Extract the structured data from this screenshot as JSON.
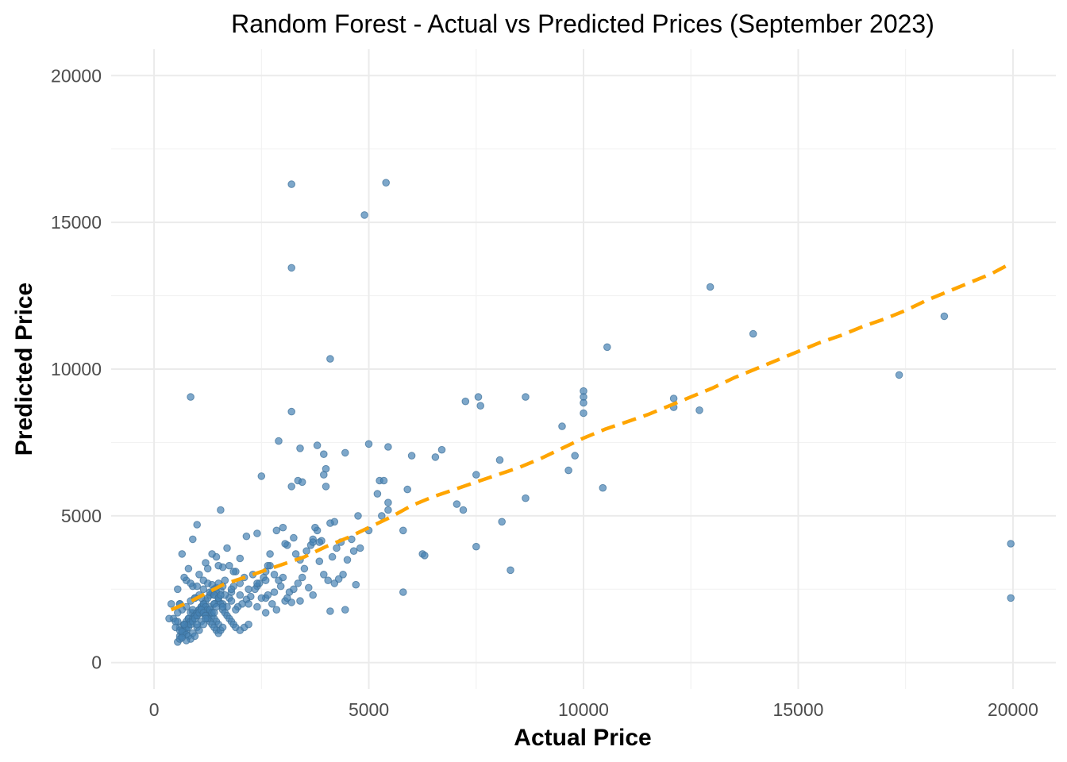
{
  "chart_data": {
    "type": "scatter",
    "title": "Random Forest - Actual vs Predicted Prices (September 2023)",
    "xlabel": "Actual Price",
    "ylabel": "Predicted Price",
    "xlim": [
      -1000,
      21000
    ],
    "ylim": [
      -900,
      20900
    ],
    "x_ticks": [
      0,
      5000,
      10000,
      15000,
      20000
    ],
    "y_ticks": [
      0,
      5000,
      10000,
      15000,
      20000
    ],
    "x_tick_labels": [
      "0",
      "5000",
      "10000",
      "15000",
      "20000"
    ],
    "y_tick_labels": [
      "0",
      "5000",
      "10000",
      "15000",
      "20000"
    ],
    "grid": true,
    "legend": "none",
    "colors": {
      "points": "#4682b4",
      "trend": "#ffa500"
    },
    "series": [
      {
        "kind": "points",
        "x": [
          3200,
          5400,
          4900,
          3200,
          12950,
          13950,
          18400,
          4100,
          10550,
          17350,
          10000,
          10000,
          10000,
          10000,
          12100,
          12100,
          12700,
          9500,
          8650,
          7250,
          7550,
          7600,
          850,
          3200,
          5000,
          5450,
          2900,
          3800,
          3400,
          4450,
          6000,
          6550,
          6700,
          3950,
          4000,
          3200,
          3350,
          3450,
          2500,
          3950,
          4000,
          5250,
          5350,
          5900,
          5450,
          5450,
          5200,
          4750,
          5300,
          5800,
          6250,
          6300,
          7050,
          7200,
          7500,
          7500,
          8050,
          8100,
          8300,
          8650,
          9650,
          9800,
          10450,
          4700,
          5000,
          5800,
          19950,
          19950,
          4100,
          3200,
          2950,
          3600,
          4200,
          4300,
          4400,
          4500,
          4800,
          4600,
          3700,
          3800,
          4200,
          3900,
          4100,
          3000,
          3100,
          3300,
          3400,
          2700,
          2800,
          2900,
          2600,
          3500,
          3550,
          3650,
          3700,
          3750,
          3850,
          3950,
          4050,
          4150,
          4250,
          4350,
          2600,
          2650,
          2750,
          2850,
          3050,
          3150,
          3250,
          3350,
          3450,
          1800,
          2000,
          2100,
          2300,
          2400,
          2150,
          2250,
          2350,
          2450,
          2550,
          2650,
          2050,
          1950,
          1850,
          1750,
          1650,
          1550,
          1450,
          1350,
          1250,
          1150,
          1050,
          950,
          850,
          750,
          650,
          550,
          450,
          600,
          700,
          800,
          900,
          1000,
          1100,
          1200,
          1300,
          1400,
          1500,
          1600,
          1700,
          1900,
          2200,
          2500,
          2800,
          3100,
          3400,
          3700,
          600,
          650,
          700,
          750,
          800,
          850,
          900,
          950,
          1000,
          1050,
          1100,
          1150,
          1200,
          1250,
          1300,
          1350,
          1400,
          1450,
          1500,
          1550,
          1600,
          1650,
          1700,
          1750,
          1800,
          1850,
          1900,
          2000,
          2100,
          2200,
          550,
          600,
          650,
          700,
          750,
          800,
          850,
          900,
          950,
          1000,
          1050,
          1100,
          1150,
          1200,
          1250,
          1300,
          1350,
          1400,
          1450,
          1500,
          500,
          550,
          600,
          650,
          700,
          750,
          800,
          850,
          900,
          950,
          1000,
          1050,
          1100,
          1150,
          1200,
          1250,
          1300,
          1350,
          1400,
          1450,
          1500,
          1550,
          1600,
          700,
          650,
          900,
          800,
          1600,
          1700,
          1550,
          1500,
          1450,
          2000,
          1800,
          1000,
          1100,
          1300,
          1400,
          1600,
          750,
          950,
          600,
          1400,
          1500,
          1650,
          3000,
          2600,
          2400,
          4450,
          4650,
          3850,
          3050,
          2150,
          2700,
          2850,
          3250,
          2400,
          1900,
          1850,
          1750,
          1350,
          1200,
          1250,
          1050,
          1150,
          900,
          1000,
          700,
          850,
          550,
          400,
          350,
          500,
          600,
          650,
          750,
          800,
          900,
          1000,
          1100,
          1200,
          1300,
          1400,
          1500,
          1550,
          1450,
          1350,
          1250,
          1150,
          1050,
          950,
          850,
          750,
          650,
          1000,
          1200,
          1400,
          1600,
          1800,
          2000,
          2200,
          2400,
          2600
        ],
        "y": [
          16300,
          16350,
          15250,
          13450,
          12800,
          11200,
          11800,
          10350,
          10750,
          9800,
          9250,
          9050,
          8850,
          8500,
          9000,
          8700,
          8600,
          8050,
          9050,
          8900,
          9050,
          8750,
          9050,
          8550,
          7450,
          7350,
          7550,
          7400,
          7300,
          7150,
          7050,
          7000,
          7250,
          7100,
          6600,
          6000,
          6200,
          6150,
          6350,
          6400,
          6000,
          6200,
          6200,
          5900,
          5450,
          5200,
          5750,
          5000,
          5000,
          4500,
          3700,
          3650,
          5400,
          5200,
          6400,
          3950,
          6900,
          4800,
          3150,
          5600,
          6550,
          7050,
          5950,
          2650,
          4500,
          2400,
          4050,
          2200,
          1750,
          2050,
          2600,
          2550,
          2700,
          2850,
          3000,
          3500,
          3900,
          4200,
          4200,
          4500,
          4800,
          4150,
          4750,
          4600,
          4000,
          3700,
          3500,
          3300,
          3000,
          2800,
          3100,
          3200,
          3800,
          4000,
          4100,
          4600,
          3450,
          3000,
          2800,
          3600,
          3900,
          4100,
          2200,
          2300,
          2000,
          1800,
          2100,
          2400,
          2500,
          2700,
          2900,
          2400,
          2700,
          2900,
          3000,
          2600,
          2150,
          2250,
          2500,
          2700,
          2900,
          3300,
          2000,
          1900,
          2600,
          2200,
          2300,
          2450,
          2550,
          2650,
          2700,
          2500,
          2300,
          2200,
          2100,
          1900,
          1800,
          1700,
          1500,
          1200,
          1300,
          1500,
          1700,
          1600,
          1700,
          1800,
          1900,
          2000,
          2100,
          2000,
          1900,
          1800,
          2000,
          2200,
          2400,
          2200,
          2100,
          2300,
          2000,
          1100,
          1300,
          1400,
          1500,
          1700,
          1800,
          1600,
          1700,
          1800,
          1900,
          2000,
          2100,
          2200,
          2300,
          2400,
          2500,
          2400,
          2200,
          2000,
          1800,
          1700,
          1600,
          1500,
          1400,
          1300,
          1200,
          1100,
          1200,
          1300,
          1400,
          900,
          1000,
          1100,
          1200,
          1300,
          1400,
          1500,
          1600,
          1700,
          1800,
          1900,
          2000,
          1900,
          1800,
          1700,
          1600,
          1500,
          1400,
          1300,
          1200,
          700,
          800,
          900,
          1000,
          1100,
          1200,
          1300,
          1400,
          1500,
          1600,
          1700,
          1800,
          1700,
          1600,
          1500,
          1400,
          1300,
          1200,
          1100,
          1000,
          1100,
          1200,
          1300,
          3700,
          4200,
          3200,
          3250,
          3900,
          5200,
          3300,
          3600,
          3550,
          2500,
          4700,
          2200,
          2400,
          2300,
          2600,
          2800,
          2200,
          2000,
          2300,
          2700,
          2800,
          2900,
          1700,
          1900,
          1800,
          3800,
          4100,
          4050,
          4300,
          3700,
          4500,
          4250,
          4400,
          3100,
          3100,
          3300,
          3700,
          3400,
          3200,
          3000,
          2800,
          2600,
          2600,
          2900,
          2700,
          2500,
          2000,
          1500,
          1400,
          1100,
          1050,
          950,
          900,
          1000,
          1200,
          1400,
          1600,
          1800,
          2000,
          2200,
          2300,
          1900,
          1700,
          1500,
          1300,
          1100,
          900,
          800,
          750,
          850,
          1300,
          1500,
          1700,
          1900,
          2100,
          2300,
          2500,
          2700,
          2800
        ]
      },
      {
        "kind": "trend",
        "x": [
          400,
          800,
          1200,
          1600,
          2000,
          2500,
          3000,
          3500,
          4000,
          4500,
          5000,
          5500,
          6000,
          6500,
          7000,
          7500,
          8000,
          8500,
          9000,
          9500,
          10000,
          10500,
          11000,
          11500,
          12000,
          12500,
          13000,
          13500,
          14000,
          14500,
          15000,
          15500,
          16000,
          16500,
          17000,
          17500,
          18000,
          18500,
          19000,
          19500,
          19950
        ],
        "y": [
          1800,
          2050,
          2350,
          2650,
          2850,
          3100,
          3350,
          3600,
          3950,
          4250,
          4600,
          4950,
          5350,
          5650,
          5900,
          6150,
          6400,
          6650,
          6950,
          7300,
          7650,
          7950,
          8200,
          8450,
          8750,
          9050,
          9350,
          9700,
          10000,
          10300,
          10600,
          10900,
          11150,
          11450,
          11700,
          12000,
          12350,
          12650,
          12950,
          13250,
          13600
        ]
      }
    ]
  }
}
